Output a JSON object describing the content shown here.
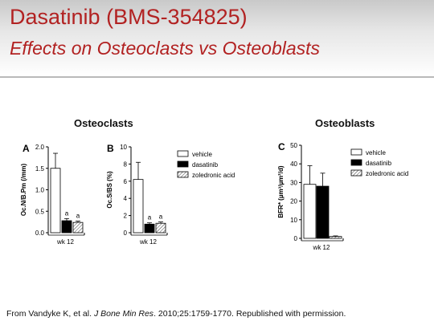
{
  "slide": {
    "title": "Dasatinib (BMS-354825)",
    "subtitle": "Effects on Osteoclasts vs Osteoblasts",
    "left_heading": "Osteoclasts",
    "right_heading": "Osteoblasts",
    "citation_pre": "From Vandyke K, et al. ",
    "citation_journal": "J Bone Min Res",
    "citation_post": ". 2010;25:1759-1770. Republished with permission."
  },
  "legend": [
    {
      "label": "vehicle",
      "fill": "white"
    },
    {
      "label": "dasatinib",
      "fill": "black"
    },
    {
      "label": "zoledronic acid",
      "fill": "hatch"
    }
  ],
  "chart_data": [
    {
      "type": "bar",
      "panel": "A",
      "ylabel": "Oc.N/B.Pm (/mm)",
      "ylim": [
        0,
        2.0
      ],
      "yticks": [
        "0.0",
        "0.5",
        "1.0",
        "1.5",
        "2.0"
      ],
      "xlabel": "wk 12",
      "series": [
        {
          "name": "vehicle",
          "value": 1.5,
          "error": 0.35,
          "annotation": ""
        },
        {
          "name": "dasatinib",
          "value": 0.28,
          "error": 0.05,
          "annotation": "a"
        },
        {
          "name": "zoledronic acid",
          "value": 0.24,
          "error": 0.03,
          "annotation": "a"
        }
      ]
    },
    {
      "type": "bar",
      "panel": "B",
      "ylabel": "Oc.S/BS (%)",
      "ylim": [
        0,
        10
      ],
      "yticks": [
        "0",
        "2",
        "4",
        "6",
        "8",
        "10"
      ],
      "xlabel": "wk 12",
      "series": [
        {
          "name": "vehicle",
          "value": 6.2,
          "error": 2.0,
          "annotation": ""
        },
        {
          "name": "dasatinib",
          "value": 1.0,
          "error": 0.15,
          "annotation": "a"
        },
        {
          "name": "zoledronic acid",
          "value": 1.1,
          "error": 0.15,
          "annotation": "a"
        }
      ]
    },
    {
      "type": "bar",
      "panel": "C",
      "ylabel": "BFR* (µm³/µm²/d)",
      "ylim": [
        0,
        50
      ],
      "yticks": [
        "0",
        "10",
        "20",
        "30",
        "40",
        "50"
      ],
      "xlabel": "wk 12",
      "series": [
        {
          "name": "vehicle",
          "value": 29,
          "error": 10,
          "annotation": ""
        },
        {
          "name": "dasatinib",
          "value": 28,
          "error": 7,
          "annotation": ""
        },
        {
          "name": "zoledronic acid",
          "value": 1,
          "error": 0.3,
          "annotation": ""
        }
      ]
    }
  ]
}
